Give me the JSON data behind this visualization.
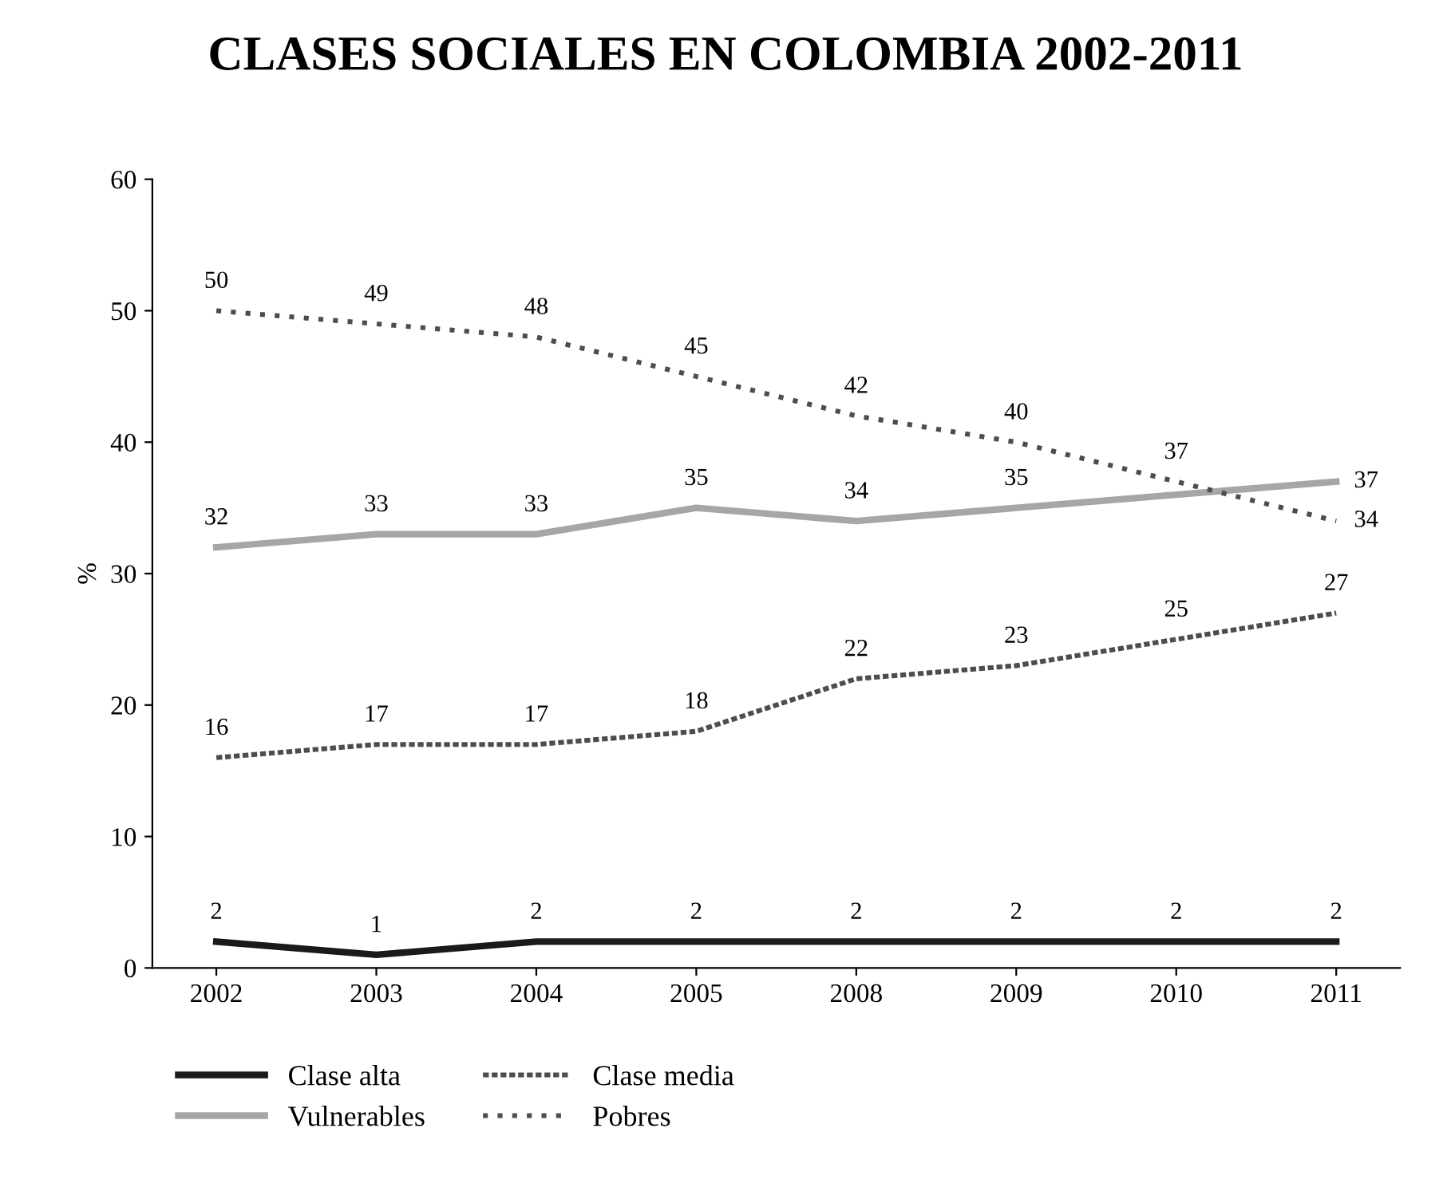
{
  "chart_data": {
    "type": "line",
    "title": "CLASES SOCIALES EN COLOMBIA 2002-2011",
    "ylabel": "%",
    "categories": [
      "2002",
      "2003",
      "2004",
      "2005",
      "2008",
      "2009",
      "2010",
      "2011"
    ],
    "series": [
      {
        "name": "Clase alta",
        "color": "#1a1a1a",
        "line_style": "solid",
        "values": [
          2,
          1,
          2,
          2,
          2,
          2,
          2,
          2
        ],
        "value_labels": [
          "2",
          "1",
          "2",
          "2",
          "2",
          "2",
          "2",
          "2"
        ]
      },
      {
        "name": "Vulnerables",
        "color": "#a6a6a6",
        "line_style": "solid",
        "values": [
          32,
          33,
          33,
          35,
          34,
          35,
          36,
          37
        ],
        "value_labels": [
          "32",
          "33",
          "33",
          "35",
          "34",
          "35",
          null,
          "37"
        ]
      },
      {
        "name": "Clase media",
        "color": "#4d4d4d",
        "line_style": "dashed",
        "values": [
          16,
          17,
          17,
          18,
          22,
          23,
          25,
          27
        ],
        "value_labels": [
          "16",
          "17",
          "17",
          "18",
          "22",
          "23",
          "25",
          "27"
        ]
      },
      {
        "name": "Pobres",
        "color": "#4d4d4d",
        "line_style": "dotted",
        "values": [
          50,
          49,
          48,
          45,
          42,
          40,
          37,
          34
        ],
        "value_labels": [
          "50",
          "49",
          "48",
          "45",
          "42",
          "40",
          "37",
          "34"
        ]
      }
    ],
    "ylim": [
      0,
      60
    ],
    "yticks": [
      0,
      10,
      20,
      30,
      40,
      50,
      60
    ],
    "grid": false,
    "legend": "bottom",
    "marker": "none"
  }
}
